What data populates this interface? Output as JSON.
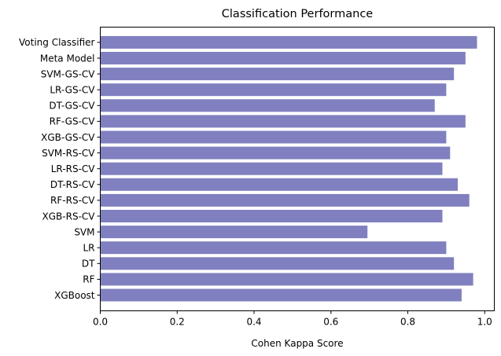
{
  "chart_data": {
    "type": "bar",
    "orientation": "horizontal",
    "title": "Classification Performance",
    "xlabel": "Cohen Kappa Score",
    "ylabel": "",
    "xlim": [
      0,
      1.025
    ],
    "xticks": [
      "0.0",
      "0.2",
      "0.4",
      "0.6",
      "0.8",
      "1.0"
    ],
    "grid": false,
    "bar_color": "#8080c0",
    "categories": [
      "XGBoost",
      "RF",
      "DT",
      "LR",
      "SVM",
      "XGB-RS-CV",
      "RF-RS-CV",
      "DT-RS-CV",
      "LR-RS-CV",
      "SVM-RS-CV",
      "XGB-GS-CV",
      "RF-GS-CV",
      "DT-GS-CV",
      "LR-GS-CV",
      "SVM-GS-CV",
      "Meta Model",
      "Voting Classifier"
    ],
    "values": [
      0.94,
      0.97,
      0.92,
      0.9,
      0.695,
      0.89,
      0.96,
      0.93,
      0.89,
      0.91,
      0.9,
      0.95,
      0.87,
      0.9,
      0.92,
      0.95,
      0.98
    ]
  }
}
